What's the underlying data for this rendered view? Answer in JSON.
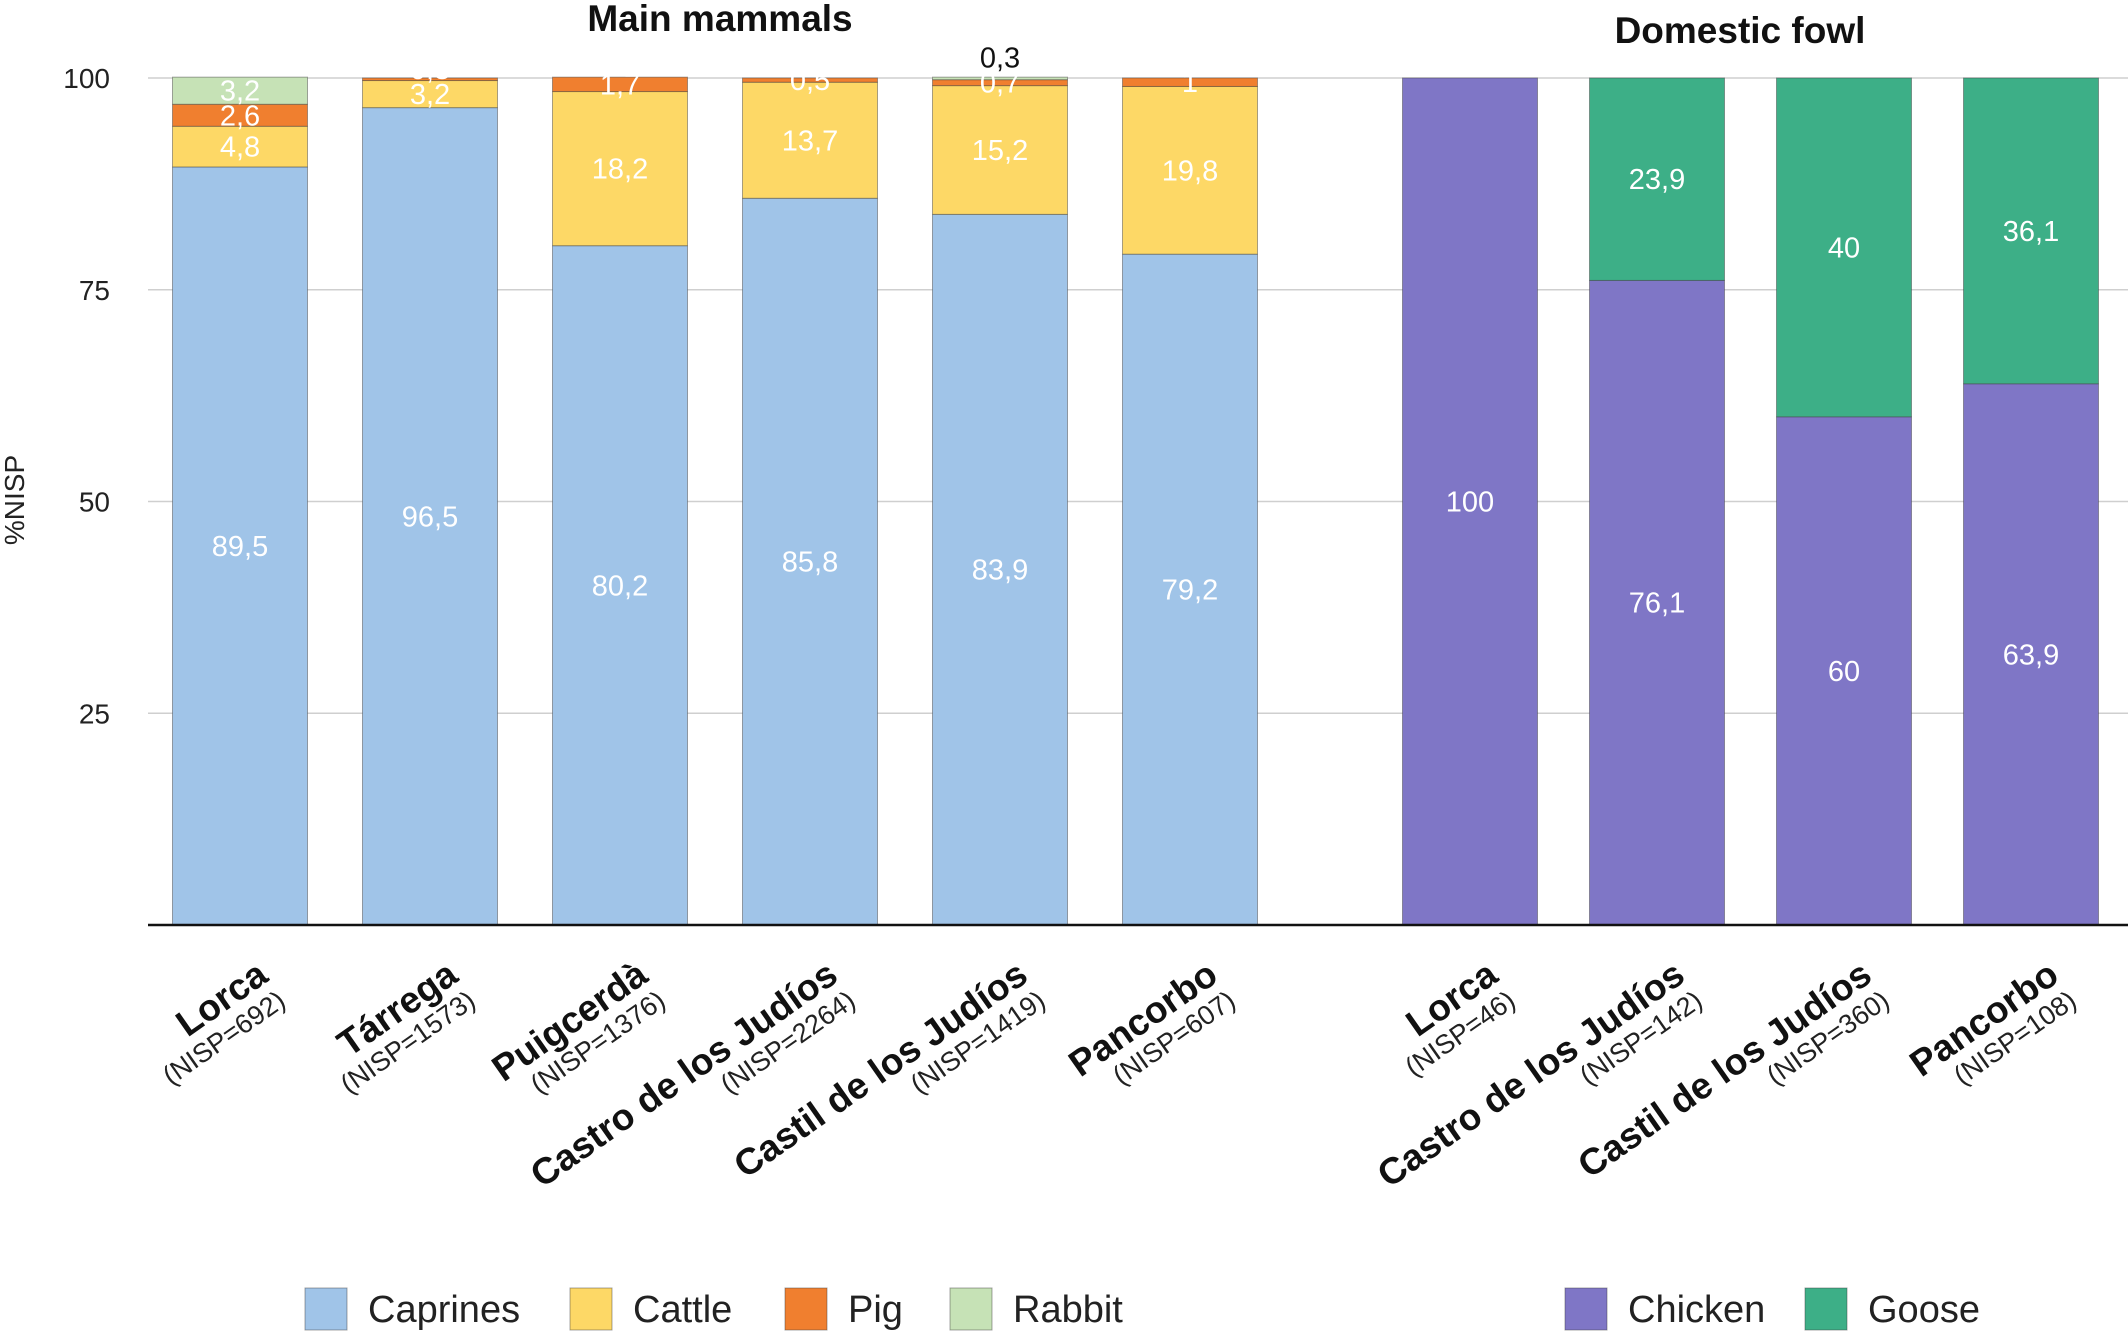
{
  "colors": {
    "Caprines": "#a0c4e8",
    "Cattle": "#fdd866",
    "Pig": "#f07f2f",
    "Rabbit": "#c6e2b6",
    "Chicken": "#7f76c6",
    "Goose": "#3daf87"
  },
  "chart_data": [
    {
      "type": "bar",
      "stacked": true,
      "title": "Main mammals",
      "ylabel": "%NISP",
      "ylim": [
        0,
        100
      ],
      "yticks": [
        "25",
        "50",
        "75",
        "100"
      ],
      "grid": true,
      "legend_position": "bottom",
      "categories": [
        {
          "site": "Lorca",
          "nisp": "(NISP=692)"
        },
        {
          "site": "Tárrega",
          "nisp": "(NISP=1573)"
        },
        {
          "site": "Puigcerdà",
          "nisp": "(NISP=1376)"
        },
        {
          "site": "Castro de los Judíos",
          "nisp": "(NISP=2264)"
        },
        {
          "site": "Castil de los Judíos",
          "nisp": "(NISP=1419)"
        },
        {
          "site": "Pancorbo",
          "nisp": "(NISP=607)"
        }
      ],
      "series": [
        {
          "name": "Caprines",
          "values": [
            89.5,
            96.5,
            80.2,
            85.8,
            83.9,
            79.2
          ],
          "labels": [
            "89,5",
            "96,5",
            "80,2",
            "85,8",
            "83,9",
            "79,2"
          ]
        },
        {
          "name": "Cattle",
          "values": [
            4.8,
            3.2,
            18.2,
            13.7,
            15.2,
            19.8
          ],
          "labels": [
            "4,8",
            "3,2",
            "18,2",
            "13,7",
            "15,2",
            "19,8"
          ]
        },
        {
          "name": "Pig",
          "values": [
            2.6,
            0.3,
            1.7,
            0.5,
            0.7,
            1
          ],
          "labels": [
            "2,6",
            "0,3",
            "1,7",
            "0,5",
            "0,7",
            "1"
          ]
        },
        {
          "name": "Rabbit",
          "values": [
            3.2,
            0,
            0,
            0,
            0.3,
            0
          ],
          "labels": [
            "3,2",
            "",
            "",
            "",
            "0,3",
            ""
          ]
        }
      ]
    },
    {
      "type": "bar",
      "stacked": true,
      "title": "Domestic fowl",
      "ylim": [
        0,
        100
      ],
      "grid": true,
      "legend_position": "bottom",
      "categories": [
        {
          "site": "Lorca",
          "nisp": "(NISP=46)"
        },
        {
          "site": "Castro de los Judíos",
          "nisp": "(NISP=142)"
        },
        {
          "site": "Castil de los Judíos",
          "nisp": "(NISP=360)"
        },
        {
          "site": "Pancorbo",
          "nisp": "(NISP=108)"
        }
      ],
      "series": [
        {
          "name": "Chicken",
          "values": [
            100,
            76.1,
            60,
            63.9
          ],
          "labels": [
            "100",
            "76,1",
            "60",
            "63,9"
          ]
        },
        {
          "name": "Goose",
          "values": [
            0,
            23.9,
            40,
            36.1
          ],
          "labels": [
            "",
            "23,9",
            "40",
            "36,1"
          ]
        }
      ]
    }
  ]
}
